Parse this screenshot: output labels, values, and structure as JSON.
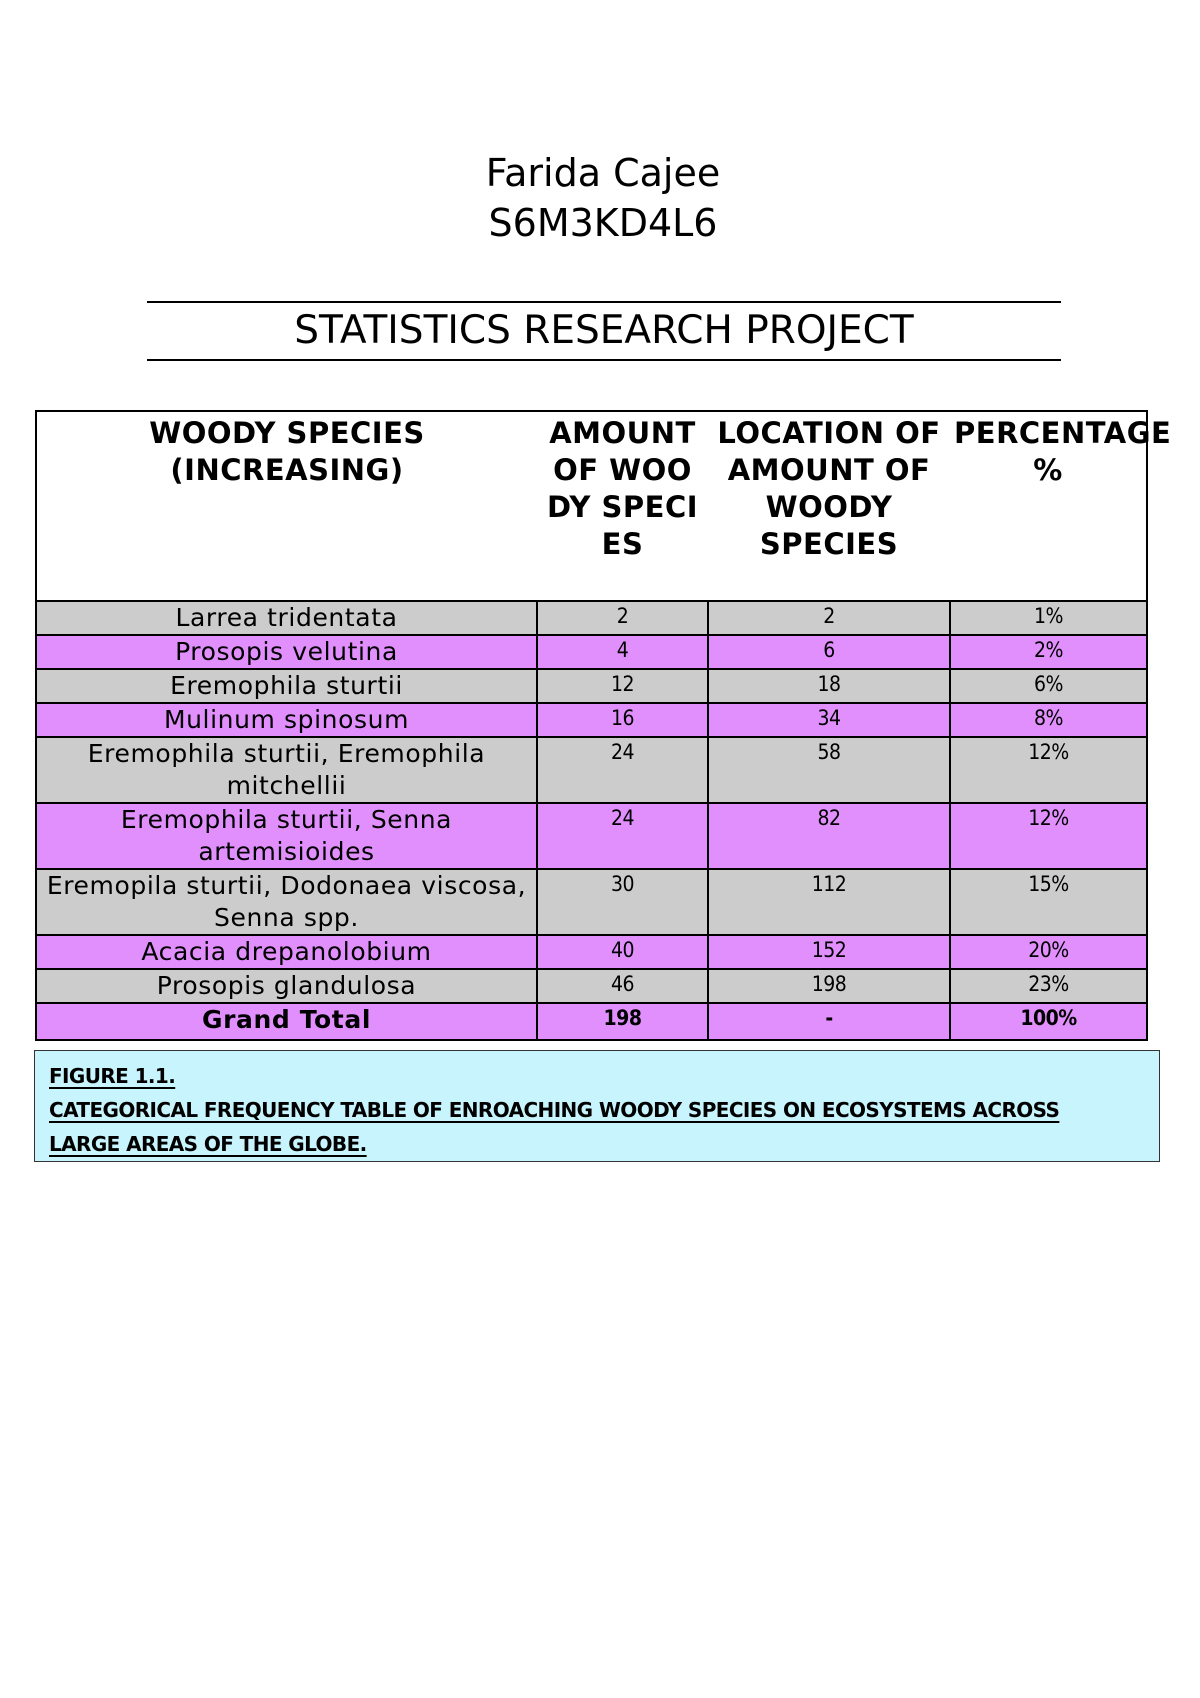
{
  "author": {
    "name": "Farida Cajee",
    "student_id": "S6M3KD4L6"
  },
  "title": "STATISTICS RESEARCH PROJECT",
  "table": {
    "headers": [
      "WOODY SPECIES (INCREASING)",
      "AMOUNT OF WOODY SPECIES",
      "LOCATION OF AMOUNT OF WOODY SPECIES",
      "PERCENTAGE %"
    ],
    "header_display": {
      "species": "WOODY SPECIES\n(INCREASING)",
      "amount": "AMOUNT OF WOODY SPECIES",
      "location": "LOCATION OF AMOUNT OF WOODY SPECIES",
      "percentage": "PERCENTAGE %"
    },
    "rows": [
      {
        "species": "Larrea tridentata",
        "amount": "2",
        "location": "2",
        "percentage": "1%",
        "color": "grey"
      },
      {
        "species": "Prosopis velutina",
        "amount": "4",
        "location": "6",
        "percentage": "2%",
        "color": "pink"
      },
      {
        "species": "Eremophila sturtii",
        "amount": "12",
        "location": "18",
        "percentage": "6%",
        "color": "grey"
      },
      {
        "species": "Mulinum spinosum",
        "amount": "16",
        "location": "34",
        "percentage": "8%",
        "color": "pink"
      },
      {
        "species": "Eremophila sturtii, Eremophila mitchellii",
        "amount": "24",
        "location": "58",
        "percentage": "12%",
        "color": "grey"
      },
      {
        "species": "Eremophila sturtii, Senna artemisioides",
        "amount": "24",
        "location": "82",
        "percentage": "12%",
        "color": "pink"
      },
      {
        "species": "Eremopila sturtii, Dodonaea viscosa, Senna spp.",
        "amount": "30",
        "location": "112",
        "percentage": "15%",
        "color": "grey"
      },
      {
        "species": "Acacia drepanolobium",
        "amount": "40",
        "location": "152",
        "percentage": "20%",
        "color": "pink"
      },
      {
        "species": "Prosopis glandulosa",
        "amount": "46",
        "location": "198",
        "percentage": "23%",
        "color": "grey"
      }
    ],
    "total": {
      "label": "Grand Total",
      "amount": "198",
      "location": "-",
      "percentage": "100%"
    }
  },
  "caption": {
    "figure": "FIGURE 1.1.",
    "line1": "CATEGORICAL FREQUENCY TABLE OF ENROACHING WOODY SPECIES ON ECOSYSTEMS ACROSS",
    "line2": "LARGE AREAS OF THE GLOBE."
  },
  "colors": {
    "row_grey": "#cccccc",
    "row_pink": "#e08ffc",
    "caption_bg": "#c8f4fe",
    "border": "#000000"
  }
}
